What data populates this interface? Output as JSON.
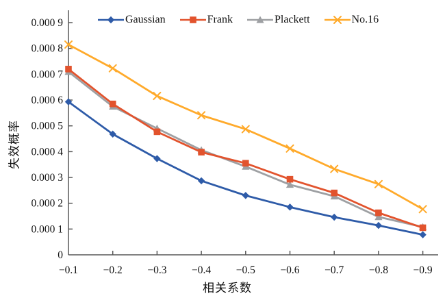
{
  "chart_data": {
    "type": "line",
    "title": "",
    "xlabel": "相关系数",
    "ylabel": "失效概率",
    "x": [
      -0.1,
      -0.2,
      -0.3,
      -0.4,
      -0.5,
      -0.6,
      -0.7,
      -0.8,
      -0.9
    ],
    "x_tick_labels": [
      "−0.1",
      "−0.2",
      "−0.3",
      "−0.4",
      "−0.5",
      "−0.6",
      "−0.7",
      "−0.8",
      "−0.9"
    ],
    "y_ticks": [
      0,
      0.0001,
      0.0002,
      0.0003,
      0.0004,
      0.0005,
      0.0006,
      0.0007,
      0.0008,
      0.0009
    ],
    "y_tick_labels": [
      "0",
      "0.000 1",
      "0.000 2",
      "0.000 3",
      "0.000 4",
      "0.000 5",
      "0.000 6",
      "0.000 7",
      "0.000 8",
      "0.000 9"
    ],
    "ylim": [
      0,
      0.00095
    ],
    "grid": false,
    "legend_position": "top",
    "axis_color": "#595959",
    "series": [
      {
        "name": "Gaussian",
        "color": "#2E5BA8",
        "marker": "diamond",
        "values": [
          0.000593,
          0.000468,
          0.000373,
          0.000287,
          0.00023,
          0.000185,
          0.000146,
          0.000114,
          7.8e-05
        ]
      },
      {
        "name": "Frank",
        "color": "#E2532D",
        "marker": "square",
        "values": [
          0.00072,
          0.000585,
          0.000477,
          0.000398,
          0.000355,
          0.000293,
          0.00024,
          0.000163,
          0.000105
        ]
      },
      {
        "name": "Plackett",
        "color": "#9EA0A3",
        "marker": "triangle",
        "values": [
          0.00071,
          0.000575,
          0.00049,
          0.000406,
          0.000342,
          0.000272,
          0.000227,
          0.000147,
          0.000108
        ]
      },
      {
        "name": "No.16",
        "color": "#FFAA2B",
        "marker": "x",
        "values": [
          0.000815,
          0.000723,
          0.000616,
          0.000541,
          0.000487,
          0.000412,
          0.000333,
          0.000274,
          0.000177
        ]
      }
    ]
  }
}
